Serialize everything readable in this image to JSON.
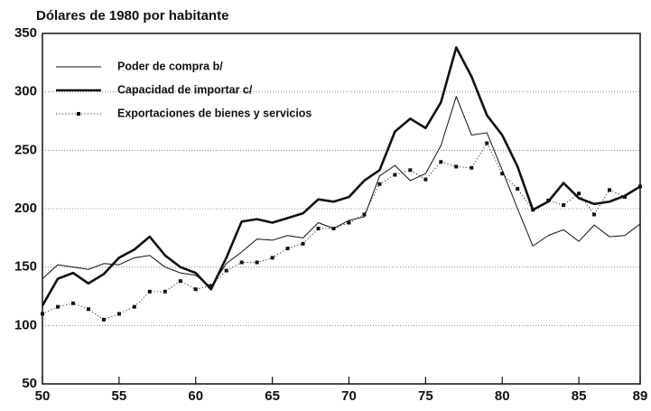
{
  "chart_data": {
    "type": "line",
    "title": "Dólares de 1980 por habitante",
    "x": [
      50,
      51,
      52,
      53,
      54,
      55,
      56,
      57,
      58,
      59,
      60,
      61,
      62,
      63,
      64,
      65,
      66,
      67,
      68,
      69,
      70,
      71,
      72,
      73,
      74,
      75,
      76,
      77,
      78,
      79,
      80,
      81,
      82,
      83,
      84,
      85,
      86,
      87,
      88,
      89
    ],
    "xlim": [
      50,
      89
    ],
    "xticks": [
      50,
      55,
      60,
      65,
      70,
      75,
      80,
      85,
      89
    ],
    "ylim": [
      50,
      350
    ],
    "yticks": [
      50,
      100,
      150,
      200,
      250,
      300,
      350
    ],
    "grid": true,
    "legend": "upper-left",
    "series": [
      {
        "name": "Poder de compra b/",
        "color": "#111111",
        "style": "thin",
        "values": [
          140,
          152,
          150,
          148,
          153,
          152,
          158,
          160,
          150,
          145,
          143,
          133,
          153,
          163,
          174,
          173,
          177,
          175,
          188,
          183,
          190,
          193,
          228,
          237,
          224,
          230,
          254,
          296,
          263,
          265,
          233,
          200,
          168,
          177,
          182,
          172,
          186,
          176,
          177,
          187
        ]
      },
      {
        "name": "Capacidad de importar c/",
        "color": "#111111",
        "style": "thick",
        "values": [
          117,
          140,
          145,
          136,
          144,
          158,
          165,
          176,
          160,
          150,
          145,
          131,
          158,
          189,
          191,
          188,
          192,
          196,
          208,
          206,
          210,
          224,
          233,
          266,
          277,
          269,
          291,
          338,
          313,
          280,
          263,
          236,
          199,
          206,
          222,
          209,
          204,
          206,
          211,
          219
        ]
      },
      {
        "name": "Exportaciones de bienes y servicios",
        "color": "#111111",
        "style": "dotted",
        "values": [
          110,
          116,
          119,
          114,
          105,
          110,
          116,
          129,
          129,
          138,
          131,
          134,
          147,
          154,
          154,
          158,
          166,
          170,
          183,
          183,
          188,
          195,
          221,
          229,
          233,
          225,
          240,
          236,
          235,
          256,
          230,
          217,
          199,
          207,
          203,
          213,
          195,
          216,
          210,
          219
        ]
      }
    ]
  }
}
